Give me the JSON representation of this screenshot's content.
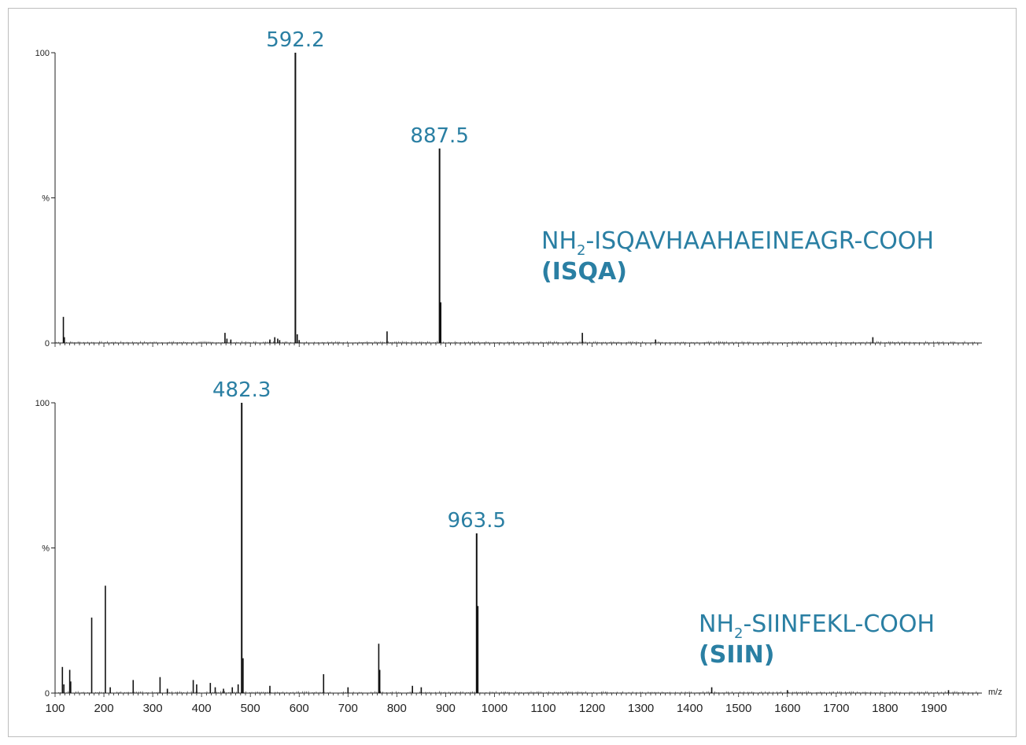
{
  "chart_data": [
    {
      "type": "bar",
      "name": "spectrum-top",
      "peptide_prefix": "NH",
      "peptide_sub": "2",
      "peptide_suffix": "-ISQAVHAAHAEINEAGR-COOH",
      "peptide_short": "(ISQA)",
      "y_ticks": [
        "100",
        "%",
        "0"
      ],
      "xlim": [
        100,
        2000
      ],
      "ylim": [
        0,
        100
      ],
      "peaks": [
        {
          "x": 117,
          "y": 9
        },
        {
          "x": 119,
          "y": 2
        },
        {
          "x": 448,
          "y": 3.5
        },
        {
          "x": 452,
          "y": 1.5
        },
        {
          "x": 460,
          "y": 1.2
        },
        {
          "x": 540,
          "y": 1.2
        },
        {
          "x": 550,
          "y": 2
        },
        {
          "x": 556,
          "y": 1.5
        },
        {
          "x": 560,
          "y": 1
        },
        {
          "x": 592.2,
          "y": 100
        },
        {
          "x": 596,
          "y": 3
        },
        {
          "x": 600,
          "y": 1
        },
        {
          "x": 780,
          "y": 4
        },
        {
          "x": 887.5,
          "y": 67
        },
        {
          "x": 890,
          "y": 14
        },
        {
          "x": 1180,
          "y": 3.5
        },
        {
          "x": 1330,
          "y": 1.2
        },
        {
          "x": 1775,
          "y": 2
        }
      ],
      "labels": [
        {
          "text": "592.2",
          "x": 592.2,
          "y": 100
        },
        {
          "text": "887.5",
          "x": 887.5,
          "y": 67
        }
      ]
    },
    {
      "type": "bar",
      "name": "spectrum-bottom",
      "peptide_prefix": "NH",
      "peptide_sub": "2",
      "peptide_suffix": "-SIINFEKL-COOH",
      "peptide_short": "(SIIN)",
      "y_ticks": [
        "100",
        "%",
        "0"
      ],
      "xlim": [
        100,
        2000
      ],
      "ylim": [
        0,
        100
      ],
      "xlabel": "m/z",
      "x_tick_labels": [
        "100",
        "200",
        "300",
        "400",
        "500",
        "600",
        "700",
        "800",
        "900",
        "1000",
        "1100",
        "1200",
        "1300",
        "1400",
        "1500",
        "1600",
        "1700",
        "1800",
        "1900"
      ],
      "peaks": [
        {
          "x": 115,
          "y": 9
        },
        {
          "x": 118,
          "y": 3
        },
        {
          "x": 130,
          "y": 8
        },
        {
          "x": 132,
          "y": 4
        },
        {
          "x": 175,
          "y": 26
        },
        {
          "x": 203,
          "y": 37
        },
        {
          "x": 213,
          "y": 2
        },
        {
          "x": 260,
          "y": 4.5
        },
        {
          "x": 315,
          "y": 5.5
        },
        {
          "x": 330,
          "y": 1.5
        },
        {
          "x": 383,
          "y": 4.5
        },
        {
          "x": 390,
          "y": 3
        },
        {
          "x": 418,
          "y": 3.5
        },
        {
          "x": 428,
          "y": 2
        },
        {
          "x": 445,
          "y": 1.5
        },
        {
          "x": 463,
          "y": 2
        },
        {
          "x": 475,
          "y": 3
        },
        {
          "x": 482.3,
          "y": 100
        },
        {
          "x": 485,
          "y": 12
        },
        {
          "x": 540,
          "y": 2.5
        },
        {
          "x": 650,
          "y": 6.5
        },
        {
          "x": 700,
          "y": 2
        },
        {
          "x": 763,
          "y": 17
        },
        {
          "x": 765,
          "y": 8
        },
        {
          "x": 832,
          "y": 2.5
        },
        {
          "x": 850,
          "y": 2
        },
        {
          "x": 963.5,
          "y": 55
        },
        {
          "x": 966,
          "y": 30
        },
        {
          "x": 1445,
          "y": 2
        },
        {
          "x": 1600,
          "y": 1
        },
        {
          "x": 1930,
          "y": 1
        }
      ],
      "labels": [
        {
          "text": "482.3",
          "x": 482.3,
          "y": 100
        },
        {
          "text": "963.5",
          "x": 963.5,
          "y": 55
        }
      ]
    }
  ]
}
